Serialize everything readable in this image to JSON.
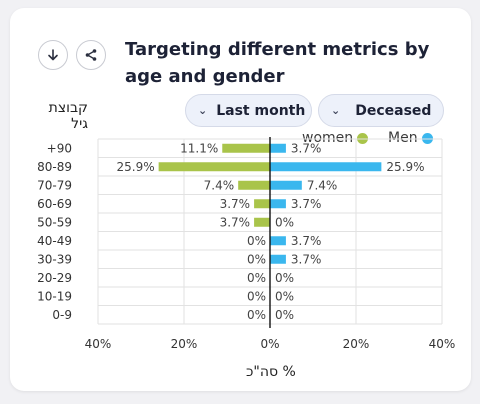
{
  "header": {
    "title": "Targeting different metrics by age and gender",
    "filter_period": "Last month",
    "filter_metric": "Deceased"
  },
  "icons": {
    "download": "download-icon",
    "share": "share-icon"
  },
  "colors": {
    "women": "#a9c44a",
    "men": "#3ab7ee"
  },
  "chart_data": {
    "type": "bar",
    "orientation": "horizontal-population-pyramid",
    "title": "Targeting different metrics by age and gender",
    "ylabel": "קבוצת גיל",
    "xlabel": "% סה\"כ",
    "categories": [
      "+90",
      "80-89",
      "70-79",
      "60-69",
      "50-59",
      "40-49",
      "30-39",
      "20-29",
      "10-19",
      "0-9"
    ],
    "series": [
      {
        "name": "women",
        "values": [
          11.1,
          25.9,
          7.4,
          3.7,
          3.7,
          0,
          0,
          0,
          0,
          0
        ]
      },
      {
        "name": "Men",
        "values": [
          3.7,
          25.9,
          7.4,
          3.7,
          0,
          3.7,
          3.7,
          0,
          0,
          0
        ]
      }
    ],
    "labels_women": [
      "11.1%",
      "25.9%",
      "7.4%",
      "3.7%",
      "3.7%",
      "0%",
      "0%",
      "0%",
      "0%",
      "0%"
    ],
    "labels_men": [
      "3.7%",
      "25.9%",
      "7.4%",
      "3.7%",
      "0%",
      "3.7%",
      "3.7%",
      "0%",
      "0%",
      "0%"
    ],
    "xticks": [
      "40%",
      "20%",
      "0%",
      "20%",
      "40%"
    ],
    "xlim": [
      -40,
      40
    ],
    "grid": true,
    "legend_position": "top-right"
  }
}
